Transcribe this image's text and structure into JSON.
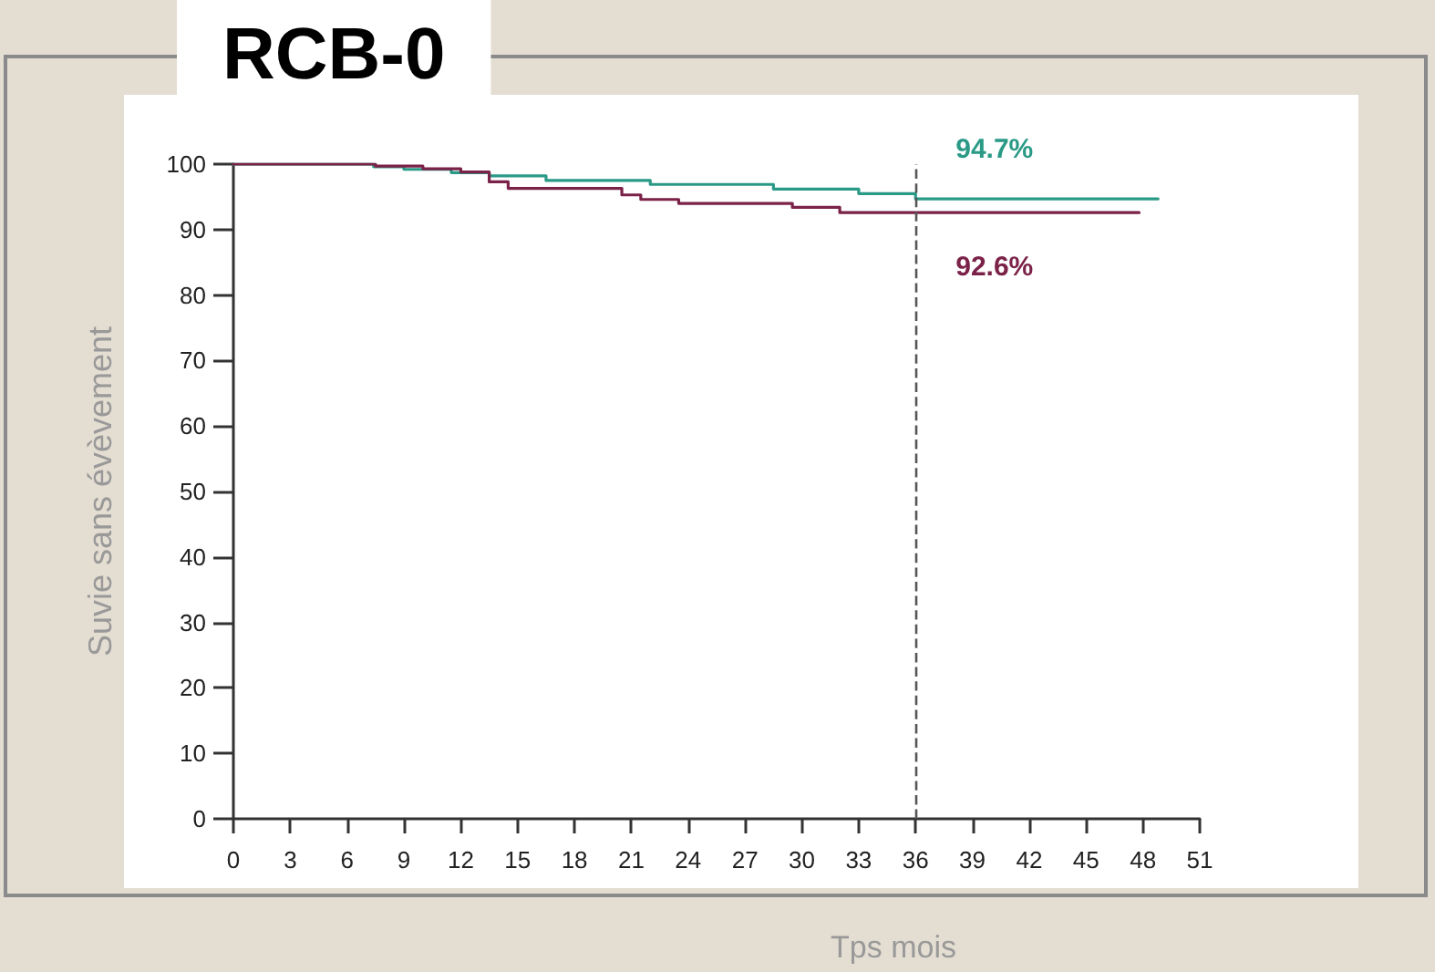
{
  "chart_data": {
    "type": "step",
    "title": "RCB-0",
    "xlabel": "Tps mois",
    "ylabel": "Suvie sans évèvement",
    "series": [
      {
        "color": "#2a9a86",
        "x": [
          0,
          7.4,
          9,
          11.5,
          13.5,
          16.5,
          22,
          28.5,
          33,
          36,
          48.8
        ],
        "values": [
          100,
          99.6,
          99.2,
          98.7,
          98.2,
          97.5,
          96.9,
          96.2,
          95.5,
          94.7,
          94.7
        ]
      },
      {
        "color": "#7b2248",
        "x": [
          0,
          7.5,
          10,
          12,
          13.5,
          14.5,
          20.5,
          21.5,
          23.5,
          29.5,
          32,
          47.8
        ],
        "values": [
          100,
          99.7,
          99.3,
          98.8,
          97.3,
          96.3,
          95.3,
          94.6,
          94,
          93.4,
          92.6,
          92.6
        ]
      }
    ],
    "xlim": [
      0,
      51
    ],
    "xticks": [
      0,
      3,
      6,
      9,
      12,
      15,
      18,
      21,
      24,
      27,
      30,
      33,
      36,
      39,
      42,
      45,
      48,
      51
    ],
    "ylim": [
      0,
      100
    ],
    "yticks": [
      0,
      10,
      20,
      30,
      40,
      50,
      60,
      70,
      80,
      90,
      100
    ],
    "grid": false,
    "marker": "none",
    "line_style": "solid",
    "ref_lines": [
      {
        "axis": "x",
        "value": 36,
        "color": "#555555",
        "line_style": "dashed"
      }
    ],
    "annotations": [
      {
        "text": "94.7%",
        "x": 36,
        "y": 94.7
      },
      {
        "text": "92.6%",
        "x": 36,
        "y": 92.6
      }
    ]
  }
}
